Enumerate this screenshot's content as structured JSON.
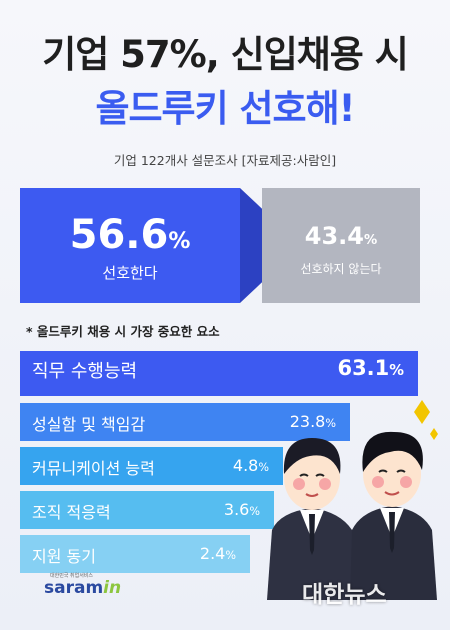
{
  "header": {
    "title_line1": "기업 57%, 신입채용 시",
    "title_line2": "올드루키 선호해!",
    "subtitle": "기업 122개사 설문조사 [자료제공:사람인]"
  },
  "colors": {
    "accent": "#3d5af1",
    "gray": "#b3b6c0",
    "bar_colors": [
      "#3d5af1",
      "#3f84f2",
      "#36a4ef",
      "#56bdf0",
      "#86d0f3"
    ]
  },
  "footer": {
    "logo_tag": "대한민국 취업서비스",
    "logo_word_main": "saram",
    "logo_word_in": "in",
    "watermark": "대한뉴스"
  },
  "chart_data": [
    {
      "type": "bar",
      "categories": [
        "선호한다",
        "선호하지 않는다"
      ],
      "values": [
        56.6,
        43.4
      ],
      "unit": "%"
    },
    {
      "type": "bar",
      "orientation": "horizontal",
      "title": "* 올드루키 채용 시 가장 중요한 요소",
      "categories": [
        "직무 수행능력",
        "성실함 및 책임감",
        "커뮤니케이션 능력",
        "조직 적응력",
        "지원 동기"
      ],
      "values": [
        63.1,
        23.8,
        4.8,
        3.6,
        2.4
      ],
      "unit": "%"
    }
  ]
}
